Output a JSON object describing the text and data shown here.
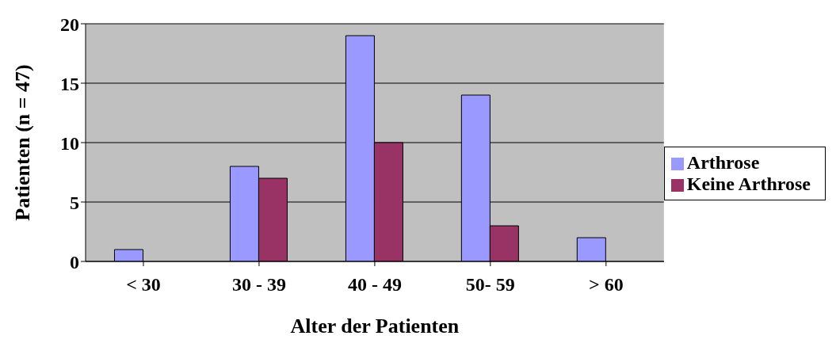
{
  "chart_data": {
    "type": "bar",
    "xlabel": "Alter der Patienten",
    "ylabel": "Patienten (n = 47)",
    "categories": [
      "< 30",
      "30 - 39",
      "40 - 49",
      "50- 59",
      "> 60"
    ],
    "series": [
      {
        "name": "Arthrose",
        "color": "#9999ff",
        "values": [
          1,
          8,
          19,
          14,
          2
        ]
      },
      {
        "name": "Keine Arthrose",
        "color": "#993366",
        "values": [
          0,
          7,
          10,
          3,
          0
        ]
      }
    ],
    "ylim": [
      0,
      20
    ],
    "yticks": [
      0,
      5,
      10,
      15,
      20
    ],
    "grid": "y",
    "legend": "right"
  }
}
